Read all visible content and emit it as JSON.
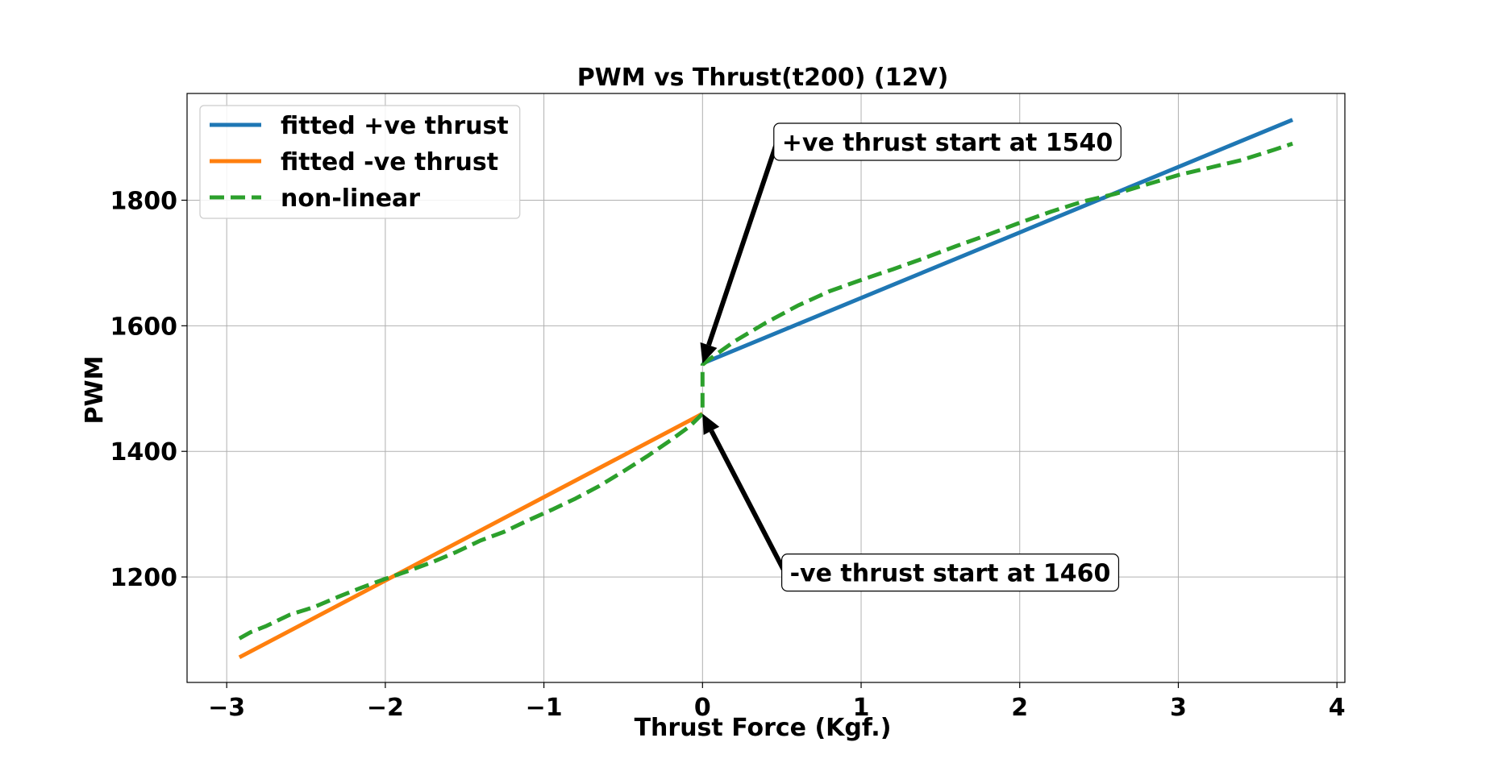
{
  "chart_data": {
    "type": "line",
    "title": "PWM vs Thrust(t200) (12V)",
    "xlabel": "Thrust Force (Kgf.)",
    "ylabel": "PWM",
    "xlim": [
      -3.25,
      4.05
    ],
    "ylim": [
      1032,
      1970
    ],
    "xticks": [
      -3,
      -2,
      -1,
      0,
      1,
      2,
      3,
      4
    ],
    "xtick_labels": [
      "−3",
      "−2",
      "−1",
      "0",
      "1",
      "2",
      "3",
      "4"
    ],
    "yticks": [
      1200,
      1400,
      1600,
      1800
    ],
    "ytick_labels": [
      "1200",
      "1400",
      "1600",
      "1800"
    ],
    "grid": true,
    "legend_position": "upper-left",
    "series": [
      {
        "name": "fitted +ve thrust",
        "color": "#1f77b4",
        "style": "solid",
        "x": [
          0.0,
          3.72
        ],
        "y": [
          1540,
          1928
        ]
      },
      {
        "name": "fitted -ve thrust",
        "color": "#ff7f0e",
        "style": "solid",
        "x": [
          -2.92,
          0.0
        ],
        "y": [
          1072,
          1460
        ]
      },
      {
        "name": "non-linear",
        "color": "#2ca02c",
        "style": "dashed",
        "x": [
          -2.92,
          -2.85,
          -2.75,
          -2.6,
          -2.45,
          -2.3,
          -2.15,
          -2.0,
          -1.85,
          -1.7,
          -1.55,
          -1.4,
          -1.25,
          -1.1,
          -0.95,
          -0.8,
          -0.65,
          -0.5,
          -0.35,
          -0.2,
          -0.08,
          0.0,
          0.0,
          0.0,
          0.05,
          0.2,
          0.4,
          0.6,
          0.8,
          1.0,
          1.2,
          1.4,
          1.6,
          1.8,
          2.0,
          2.2,
          2.4,
          2.6,
          2.8,
          3.0,
          3.2,
          3.4,
          3.6,
          3.72
        ],
        "y": [
          1102,
          1112,
          1122,
          1140,
          1152,
          1168,
          1183,
          1197,
          1210,
          1224,
          1240,
          1258,
          1272,
          1290,
          1307,
          1325,
          1345,
          1368,
          1392,
          1418,
          1440,
          1460,
          1500,
          1538,
          1548,
          1575,
          1605,
          1632,
          1655,
          1673,
          1690,
          1708,
          1727,
          1745,
          1764,
          1782,
          1798,
          1810,
          1825,
          1840,
          1852,
          1864,
          1880,
          1890
        ]
      }
    ],
    "annotations": [
      {
        "text": "+ve thrust start at 1540",
        "point_x": 0.0,
        "point_y": 1540,
        "text_x": 0.47,
        "text_y": 1893
      },
      {
        "text": "-ve thrust start at 1460",
        "point_x": 0.0,
        "point_y": 1460,
        "text_x": 0.52,
        "text_y": 1207
      }
    ]
  }
}
